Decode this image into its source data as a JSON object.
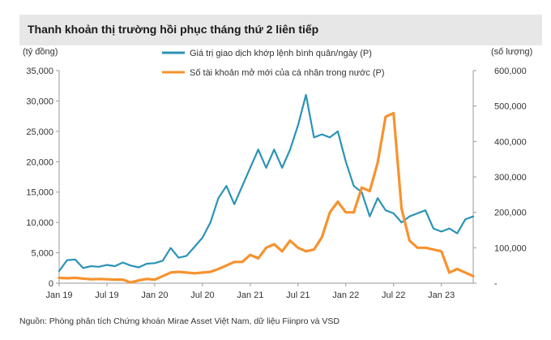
{
  "title": "Thanh khoản thị trường hồi phục tháng thứ 2 liên tiếp",
  "source": "Nguồn: Phòng phân tích Chứng khoán Mirae Asset Việt Nam, dữ liệu Fiinpro và VSD",
  "chart_data": {
    "type": "line",
    "y_left_label": "(tỷ đồng)",
    "y_right_label": "(số lượng)",
    "y_left_ticks": [
      "0",
      "5,000",
      "10,000",
      "15,000",
      "20,000",
      "25,000",
      "30,000",
      "35,000"
    ],
    "y_right_ticks": [
      "-",
      "100,000",
      "200,000",
      "300,000",
      "400,000",
      "500,000",
      "600,000"
    ],
    "y_left_range": [
      0,
      35000
    ],
    "y_right_range": [
      0,
      600000
    ],
    "x_tick_labels": [
      "Jan 19",
      "Jul 19",
      "Jan 20",
      "Jul 20",
      "Jan 21",
      "Jul 21",
      "Jan 22",
      "Jul 22",
      "Jan 23"
    ],
    "legend_position": "top",
    "series": [
      {
        "name": "Giá trị giao dịch khớp lệnh bình quân/ngày (P)",
        "axis": "left",
        "color": "#2b93b6",
        "x": [
          0,
          1,
          2,
          3,
          4,
          5,
          6,
          7,
          8,
          9,
          10,
          11,
          12,
          13,
          14,
          15,
          16,
          17,
          18,
          19,
          20,
          21,
          22,
          23,
          24,
          25,
          26,
          27,
          28,
          29,
          30,
          31,
          32,
          33,
          34,
          35,
          36,
          37,
          38,
          39,
          40,
          41,
          42,
          43,
          44,
          45,
          46,
          47,
          48,
          49,
          50,
          51,
          52
        ],
        "values": [
          2000,
          3800,
          3900,
          2500,
          2800,
          2700,
          3000,
          2800,
          3400,
          2900,
          2600,
          3200,
          3300,
          3700,
          5800,
          4200,
          4500,
          6000,
          7500,
          10000,
          14000,
          16000,
          13000,
          16000,
          19000,
          22000,
          19000,
          22000,
          19000,
          22000,
          26000,
          31000,
          24000,
          24500,
          24000,
          25000,
          20000,
          16000,
          15000,
          11000,
          14000,
          12000,
          11500,
          10000,
          11000,
          11500,
          12000,
          9000,
          8500,
          9000,
          8200,
          10500,
          11000
        ]
      },
      {
        "name": "Số tài khoản mở mới của cá nhân trong nước (P)",
        "axis": "right",
        "color": "#f7922e",
        "x": [
          0,
          1,
          2,
          3,
          4,
          5,
          6,
          7,
          8,
          9,
          10,
          11,
          12,
          13,
          14,
          15,
          16,
          17,
          18,
          19,
          20,
          21,
          22,
          23,
          24,
          25,
          26,
          27,
          28,
          29,
          30,
          31,
          32,
          33,
          34,
          35,
          36,
          37,
          38,
          39,
          40,
          41,
          42,
          43,
          44,
          45,
          46,
          47,
          48,
          49,
          50,
          51,
          52
        ],
        "values": [
          15000,
          14000,
          15000,
          13000,
          11000,
          12000,
          11000,
          10000,
          10000,
          2000,
          8000,
          12000,
          10000,
          20000,
          30000,
          32000,
          30000,
          28000,
          30000,
          32000,
          40000,
          50000,
          60000,
          60000,
          80000,
          70000,
          100000,
          110000,
          90000,
          120000,
          100000,
          90000,
          95000,
          130000,
          200000,
          230000,
          200000,
          200000,
          270000,
          260000,
          340000,
          470000,
          480000,
          210000,
          120000,
          100000,
          100000,
          95000,
          90000,
          30000,
          40000,
          30000,
          20000
        ]
      }
    ]
  }
}
